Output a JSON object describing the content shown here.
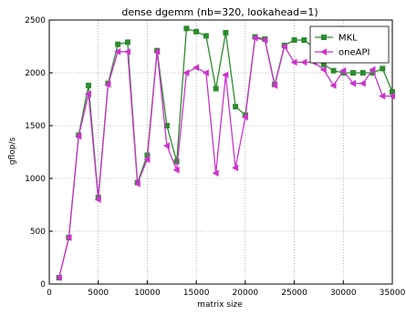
{
  "chart_data": {
    "type": "line",
    "title": "dense dgemm (nb=320, lookahead=1)",
    "xlabel": "matrix size",
    "ylabel": "gflop/s",
    "xlim": [
      0,
      35000
    ],
    "ylim": [
      0,
      2500
    ],
    "xticks": [
      0,
      5000,
      10000,
      15000,
      20000,
      25000,
      30000,
      35000
    ],
    "yticks": [
      0,
      500,
      1000,
      1500,
      2000,
      2500
    ],
    "grid": true,
    "legend": "top-right",
    "x": [
      1000,
      2000,
      3000,
      4000,
      5000,
      6000,
      7000,
      8000,
      9000,
      10000,
      11000,
      12000,
      13000,
      14000,
      15000,
      16000,
      17000,
      18000,
      19000,
      20000,
      21000,
      22000,
      23000,
      24000,
      25000,
      26000,
      27000,
      28000,
      29000,
      30000,
      31000,
      32000,
      33000,
      34000,
      35000
    ],
    "series": [
      {
        "name": "MKL",
        "color": "#2e8b2e",
        "marker": "square",
        "values": [
          60,
          440,
          1410,
          1880,
          820,
          1900,
          2270,
          2290,
          960,
          1220,
          2210,
          1500,
          1160,
          2420,
          2390,
          2350,
          1850,
          2380,
          1680,
          1600,
          2340,
          2320,
          1890,
          2260,
          2310,
          2310,
          2240,
          2080,
          2020,
          2000,
          2000,
          2000,
          2000,
          2040,
          1820
        ]
      },
      {
        "name": "oneAPI",
        "color": "#cc33cc",
        "marker": "triangle-left",
        "values": [
          60,
          440,
          1400,
          1800,
          800,
          1890,
          2200,
          2200,
          950,
          1180,
          2200,
          1310,
          1080,
          2000,
          2050,
          2000,
          1050,
          1980,
          1100,
          1580,
          2330,
          2310,
          1880,
          2250,
          2100,
          2100,
          2100,
          2030,
          1880,
          2020,
          1900,
          1900,
          2030,
          1780,
          1780
        ]
      }
    ]
  }
}
